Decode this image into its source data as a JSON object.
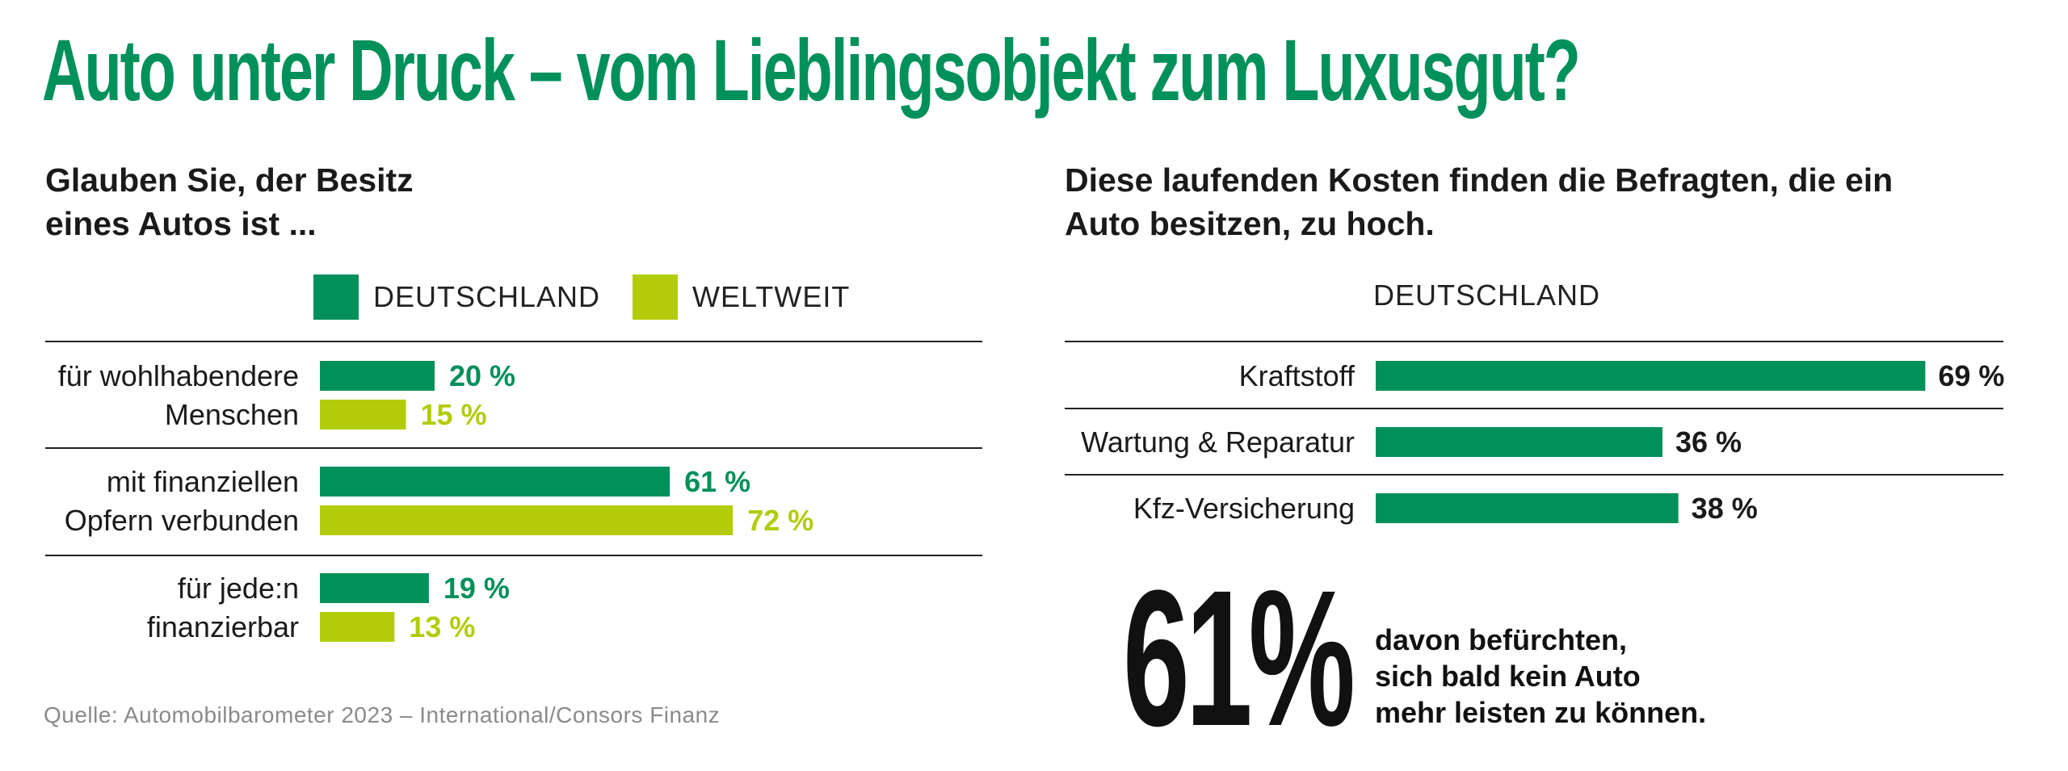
{
  "title": "Auto unter Druck – vom Lieblingsobjekt zum Luxusgut?",
  "colors": {
    "deutschland": "#00905a",
    "weltweit": "#b2cc0c",
    "title": "#00905a"
  },
  "chart_data": [
    {
      "type": "bar",
      "orientation": "horizontal",
      "title": "Glauben Sie, der Besitz eines Autos ist ...",
      "title_lines": [
        "Glauben Sie, der Besitz",
        "eines Autos ist ..."
      ],
      "legend": [
        {
          "name": "DEUTSCHLAND",
          "color": "#00905a"
        },
        {
          "name": "WELTWEIT",
          "color": "#b2cc0c"
        }
      ],
      "categories": [
        {
          "lines": [
            "für wohlhabendere",
            "Menschen"
          ]
        },
        {
          "lines": [
            "mit finanziellen",
            "Opfern verbunden"
          ]
        },
        {
          "lines": [
            "für jede:n",
            "finanzierbar"
          ]
        }
      ],
      "series": [
        {
          "name": "DEUTSCHLAND",
          "values": [
            20,
            61,
            19
          ],
          "labels": [
            "20 %",
            "61 %",
            "19 %"
          ]
        },
        {
          "name": "WELTWEIT",
          "values": [
            15,
            72,
            13
          ],
          "labels": [
            "15 %",
            "72 %",
            "13 %"
          ]
        }
      ],
      "unit": "%",
      "xlim": [
        0,
        100
      ]
    },
    {
      "type": "bar",
      "orientation": "horizontal",
      "title": "Diese laufenden Kosten finden die Befragten, die ein Auto besitzen, zu hoch.",
      "title_lines": [
        "Diese laufenden Kosten finden die Befragten, die ein",
        "Auto besitzen, zu hoch."
      ],
      "series_label": "DEUTSCHLAND",
      "categories": [
        "Kraftstoff",
        "Wartung & Reparatur",
        "Kfz-Versicherung"
      ],
      "values": [
        69,
        36,
        38
      ],
      "labels": [
        "69 %",
        "36 %",
        "38 %"
      ],
      "unit": "%",
      "xlim": [
        0,
        100
      ]
    }
  ],
  "highlight": {
    "number": "61%",
    "caption_lines": [
      "davon befürchten,",
      "sich bald kein Auto",
      "mehr leisten zu können."
    ]
  },
  "source": "Quelle: Automobilbarometer 2023 – International/Consors Finanz"
}
